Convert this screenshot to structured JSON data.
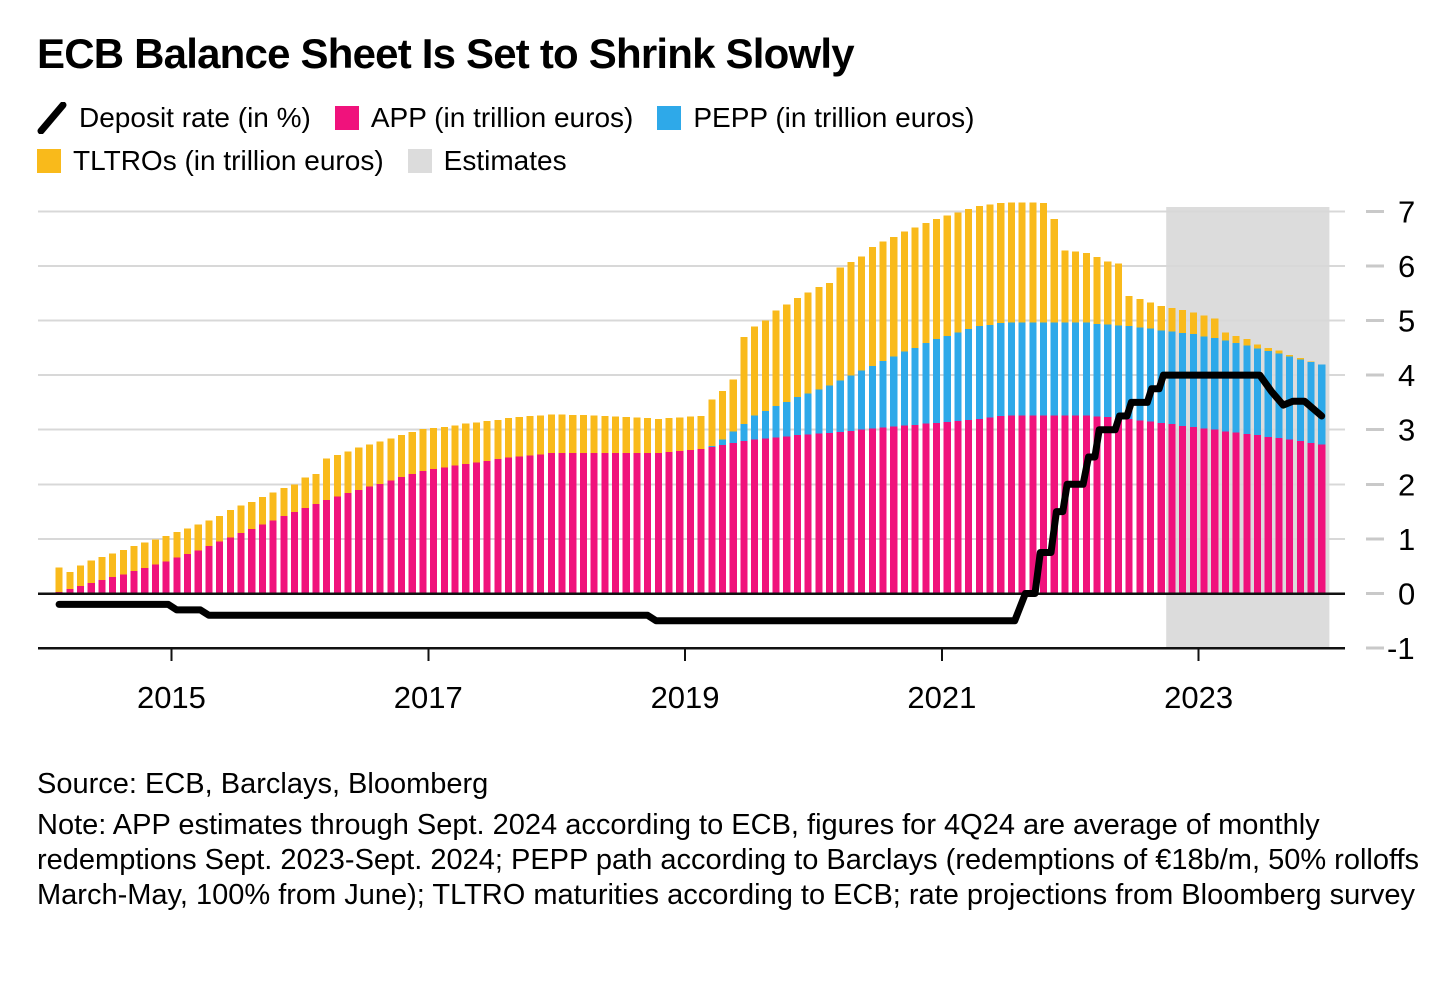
{
  "title": "ECB Balance Sheet Is Set to Shrink Slowly",
  "legend": [
    {
      "id": "deposit-rate",
      "label": "Deposit rate (in %)",
      "swatch": "slash",
      "color": "#000000"
    },
    {
      "id": "app",
      "label": "APP (in trillion euros)",
      "swatch": "square",
      "color": "#F0127C"
    },
    {
      "id": "pepp",
      "label": "PEPP (in trillion euros)",
      "swatch": "square",
      "color": "#2EA9E9"
    },
    {
      "id": "tltros",
      "label": "TLTROs (in trillion euros)",
      "swatch": "square",
      "color": "#F9BA1B"
    },
    {
      "id": "estimates",
      "label": "Estimates",
      "swatch": "square",
      "color": "#DCDCDC"
    }
  ],
  "footer": {
    "source": "Source: ECB, Barclays, Bloomberg",
    "note": "Note: APP estimates through Sept. 2024 according to ECB, figures for 4Q24 are average of monthly redemptions Sept. 2023-Sept. 2024; PEPP path according to Barclays (redemptions of €18b/m, 50% rolloffs March-May, 100% from June); TLTRO maturities according to ECB; rate projections from Bloomberg survey"
  },
  "colors": {
    "app": "#F0127C",
    "pepp": "#2EA9E9",
    "tltro": "#F9BA1B",
    "estimates_band": "#DCDCDC",
    "deposit_line": "#000000",
    "grid": "#D8D8D8",
    "axis": "#111111",
    "tick_dash": "#C9C9C9",
    "text": "#000000"
  },
  "chart_data": {
    "type": "bar",
    "subtype": "stacked-monthly-bars-with-step-line",
    "title": "ECB Balance Sheet Is Set to Shrink Slowly",
    "xlabel": "",
    "ylabel": "trillion euros / percent",
    "ylim": [
      -1,
      7.3
    ],
    "grid": true,
    "legend_position": "top",
    "start_month": "2015-02",
    "end_month": "2024-12",
    "months_count": 119,
    "x_tick_years": [
      {
        "label": "2015",
        "month_index": 11
      },
      {
        "label": "2017",
        "month_index": 35
      },
      {
        "label": "2019",
        "month_index": 59
      },
      {
        "label": "2021",
        "month_index": 83
      },
      {
        "label": "2023",
        "month_index": 107
      }
    ],
    "y_ticks": [
      -1,
      0,
      1,
      2,
      3,
      4,
      5,
      6,
      7
    ],
    "estimates_region": {
      "label": "Estimates",
      "start_month_index": 104,
      "end_month_index": 119
    },
    "series": [
      {
        "name": "APP (in trillion euros)",
        "role": "bar-bottom",
        "color_key": "app",
        "values": [
          0.03,
          0.08,
          0.14,
          0.19,
          0.25,
          0.3,
          0.35,
          0.41,
          0.47,
          0.53,
          0.59,
          0.66,
          0.72,
          0.79,
          0.87,
          0.95,
          1.03,
          1.11,
          1.18,
          1.26,
          1.34,
          1.42,
          1.49,
          1.57,
          1.64,
          1.71,
          1.78,
          1.84,
          1.9,
          1.96,
          2.01,
          2.07,
          2.13,
          2.19,
          2.24,
          2.28,
          2.31,
          2.34,
          2.37,
          2.4,
          2.43,
          2.46,
          2.49,
          2.51,
          2.53,
          2.55,
          2.57,
          2.57,
          2.57,
          2.57,
          2.57,
          2.57,
          2.57,
          2.57,
          2.57,
          2.57,
          2.57,
          2.59,
          2.61,
          2.63,
          2.65,
          2.68,
          2.72,
          2.76,
          2.79,
          2.82,
          2.84,
          2.86,
          2.88,
          2.9,
          2.91,
          2.93,
          2.94,
          2.96,
          2.98,
          3.0,
          3.02,
          3.04,
          3.06,
          3.08,
          3.09,
          3.11,
          3.12,
          3.14,
          3.16,
          3.18,
          3.2,
          3.22,
          3.25,
          3.26,
          3.26,
          3.26,
          3.26,
          3.26,
          3.26,
          3.26,
          3.26,
          3.24,
          3.23,
          3.21,
          3.2,
          3.17,
          3.15,
          3.12,
          3.1,
          3.07,
          3.05,
          3.02,
          3.0,
          2.97,
          2.95,
          2.92,
          2.9,
          2.87,
          2.85,
          2.82,
          2.79,
          2.76,
          2.73
        ]
      },
      {
        "name": "PEPP (in trillion euros)",
        "role": "bar-middle",
        "color_key": "pepp",
        "values": [
          0,
          0,
          0,
          0,
          0,
          0,
          0,
          0,
          0,
          0,
          0,
          0,
          0,
          0,
          0,
          0,
          0,
          0,
          0,
          0,
          0,
          0,
          0,
          0,
          0,
          0,
          0,
          0,
          0,
          0,
          0,
          0,
          0,
          0,
          0,
          0,
          0,
          0,
          0,
          0,
          0,
          0,
          0,
          0,
          0,
          0,
          0,
          0,
          0,
          0,
          0,
          0,
          0,
          0,
          0,
          0,
          0,
          0,
          0,
          0,
          0,
          0.02,
          0.1,
          0.21,
          0.31,
          0.44,
          0.5,
          0.57,
          0.63,
          0.7,
          0.75,
          0.81,
          0.87,
          0.94,
          1.01,
          1.08,
          1.15,
          1.22,
          1.28,
          1.35,
          1.41,
          1.48,
          1.54,
          1.58,
          1.62,
          1.66,
          1.7,
          1.7,
          1.7,
          1.7,
          1.7,
          1.7,
          1.7,
          1.7,
          1.7,
          1.7,
          1.7,
          1.7,
          1.7,
          1.7,
          1.7,
          1.7,
          1.7,
          1.7,
          1.7,
          1.7,
          1.7,
          1.69,
          1.68,
          1.66,
          1.64,
          1.62,
          1.59,
          1.57,
          1.55,
          1.52,
          1.5,
          1.48,
          1.46
        ]
      },
      {
        "name": "TLTROs (in trillion euros)",
        "role": "bar-top",
        "color_key": "tltro",
        "values": [
          0.45,
          0.31,
          0.37,
          0.41,
          0.42,
          0.43,
          0.45,
          0.46,
          0.46,
          0.46,
          0.46,
          0.47,
          0.47,
          0.47,
          0.47,
          0.47,
          0.5,
          0.5,
          0.5,
          0.51,
          0.51,
          0.51,
          0.51,
          0.55,
          0.55,
          0.76,
          0.76,
          0.76,
          0.77,
          0.77,
          0.77,
          0.77,
          0.77,
          0.77,
          0.77,
          0.75,
          0.74,
          0.74,
          0.74,
          0.73,
          0.73,
          0.72,
          0.72,
          0.72,
          0.72,
          0.71,
          0.71,
          0.71,
          0.7,
          0.7,
          0.69,
          0.68,
          0.67,
          0.66,
          0.65,
          0.64,
          0.63,
          0.62,
          0.61,
          0.61,
          0.6,
          0.85,
          0.89,
          0.95,
          1.6,
          1.63,
          1.66,
          1.75,
          1.78,
          1.81,
          1.85,
          1.87,
          1.88,
          2.07,
          2.08,
          2.09,
          2.18,
          2.19,
          2.19,
          2.2,
          2.2,
          2.2,
          2.2,
          2.2,
          2.2,
          2.2,
          2.2,
          2.2,
          2.2,
          2.2,
          2.2,
          2.2,
          2.19,
          1.9,
          1.32,
          1.3,
          1.28,
          1.22,
          1.15,
          1.13,
          0.55,
          0.52,
          0.48,
          0.45,
          0.43,
          0.42,
          0.4,
          0.38,
          0.36,
          0.15,
          0.13,
          0.12,
          0.07,
          0.06,
          0.05,
          0.03,
          0.02,
          0.01,
          0.005
        ]
      },
      {
        "name": "Deposit rate (in %)",
        "role": "line",
        "color_key": "deposit_line",
        "path_month_value": [
          [
            0,
            -0.2
          ],
          [
            10.2,
            -0.2
          ],
          [
            11,
            -0.3
          ],
          [
            13.2,
            -0.3
          ],
          [
            14,
            -0.4
          ],
          [
            55,
            -0.4
          ],
          [
            55.8,
            -0.5
          ],
          [
            89.3,
            -0.5
          ],
          [
            90.3,
            0
          ],
          [
            91.2,
            0
          ],
          [
            91.7,
            0.75
          ],
          [
            92.7,
            0.75
          ],
          [
            93.2,
            1.5
          ],
          [
            93.8,
            1.5
          ],
          [
            94.2,
            2.0
          ],
          [
            95.7,
            2.0
          ],
          [
            96.2,
            2.5
          ],
          [
            96.8,
            2.5
          ],
          [
            97.2,
            3.0
          ],
          [
            98.7,
            3.0
          ],
          [
            99.1,
            3.25
          ],
          [
            99.8,
            3.25
          ],
          [
            100.2,
            3.5
          ],
          [
            101.7,
            3.5
          ],
          [
            102.1,
            3.75
          ],
          [
            102.8,
            3.75
          ],
          [
            103.2,
            4.0
          ],
          [
            112.2,
            4.0
          ],
          [
            113.3,
            3.7
          ],
          [
            114.4,
            3.45
          ],
          [
            115.3,
            3.52
          ],
          [
            116.4,
            3.52
          ],
          [
            118,
            3.25
          ]
        ]
      }
    ]
  }
}
